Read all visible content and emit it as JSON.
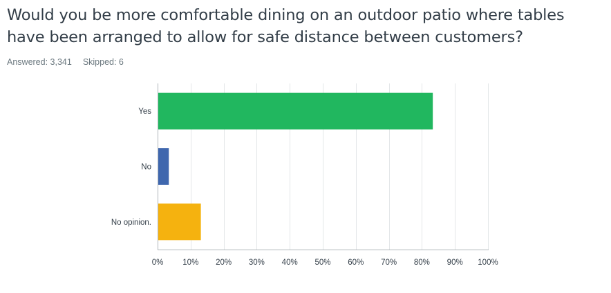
{
  "question": {
    "title": "Would you be more comfortable dining on an outdoor patio where tables have been arranged to allow for safe distance between customers?"
  },
  "stats": {
    "answered_label": "Answered: 3,341",
    "skipped_label": "Skipped: 6"
  },
  "chart_data": {
    "type": "bar",
    "orientation": "horizontal",
    "categories": [
      "Yes",
      "No",
      "No opinion."
    ],
    "values": [
      83.3,
      3.4,
      13.1
    ],
    "colors": [
      "#21b75f",
      "#3f67ae",
      "#f5b20f"
    ],
    "xlim": [
      0,
      100
    ],
    "x_ticks": [
      0,
      10,
      20,
      30,
      40,
      50,
      60,
      70,
      80,
      90,
      100
    ],
    "x_tick_labels": [
      "0%",
      "10%",
      "20%",
      "30%",
      "40%",
      "50%",
      "60%",
      "70%",
      "80%",
      "90%",
      "100%"
    ],
    "grid": true,
    "title": "",
    "xlabel": "",
    "ylabel": ""
  }
}
